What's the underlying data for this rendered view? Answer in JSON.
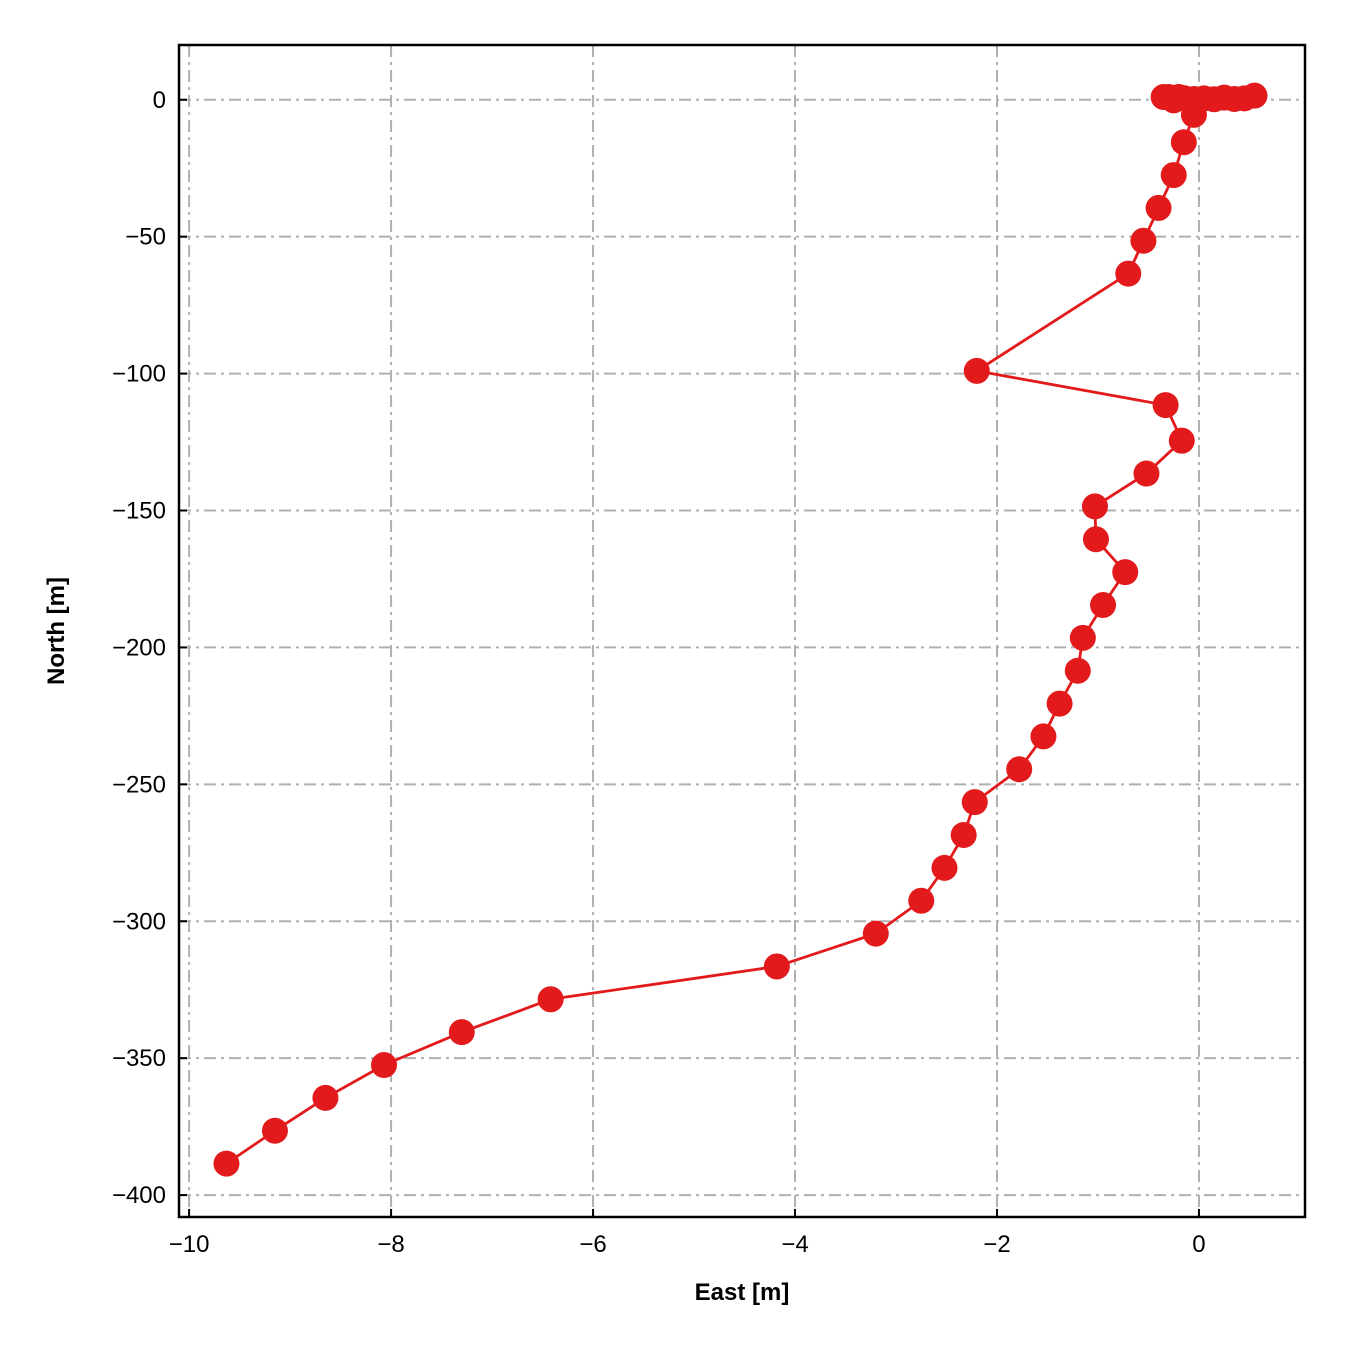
{
  "chart_data": {
    "type": "line",
    "title": "",
    "xlabel": "East [m]",
    "ylabel": "North [m]",
    "xlim": [
      -10.1,
      1.05
    ],
    "ylim": [
      -408,
      20
    ],
    "xticks": [
      -10,
      -8,
      -6,
      -4,
      -2,
      0
    ],
    "xtick_labels": [
      "−10",
      "−8",
      "−6",
      "−4",
      "−2",
      "0"
    ],
    "yticks": [
      0,
      -50,
      -100,
      -150,
      -200,
      -250,
      -300,
      -350,
      -400
    ],
    "ytick_labels": [
      "0",
      "−50",
      "−100",
      "−150",
      "−200",
      "−250",
      "−300",
      "−350",
      "−400"
    ],
    "grid": true,
    "grid_style": "dash-dot",
    "legend": "none",
    "color": "#e31a1c",
    "marker": "circle",
    "series": [
      {
        "x": [
          0.55,
          0.45,
          0.35,
          0.25,
          0.15,
          0.05,
          -0.05,
          -0.15,
          -0.25,
          -0.35,
          -0.3,
          -0.2,
          -0.05,
          -0.15,
          -0.25,
          -0.4,
          -0.55,
          -0.7,
          -2.2,
          -0.33,
          -0.17,
          -0.52,
          -1.03,
          -1.02,
          -0.73,
          -0.95,
          -1.15,
          -1.2,
          -1.38,
          -1.54,
          -1.78,
          -2.22,
          -2.33,
          -2.52,
          -2.75,
          -3.2,
          -4.18,
          -6.42,
          -7.3,
          -8.07,
          -8.65,
          -9.15,
          -9.63
        ],
        "y": [
          1.5,
          0.5,
          0.3,
          0.8,
          0.2,
          0.5,
          0.3,
          0.6,
          -0.2,
          1.0,
          1.0,
          1.0,
          -5.5,
          -15.5,
          -27.5,
          -39.5,
          -51.5,
          -63.5,
          -99,
          -111.5,
          -124.5,
          -136.5,
          -148.5,
          -160.5,
          -172.5,
          -184.5,
          -196.5,
          -208.5,
          -220.5,
          -232.5,
          -244.5,
          -256.5,
          -268.5,
          -280.5,
          -292.5,
          -304.5,
          -316.5,
          -328.5,
          -340.5,
          -352.5,
          -364.5,
          -376.5,
          -388.5
        ]
      }
    ]
  }
}
